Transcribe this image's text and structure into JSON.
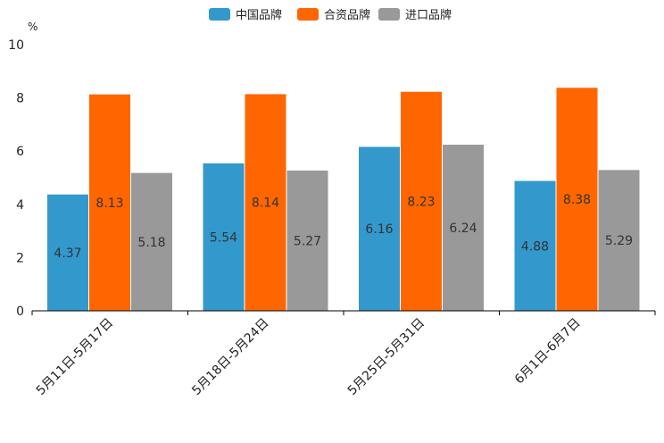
{
  "chart_data": {
    "type": "bar",
    "unit_label": "%",
    "ylim": [
      0,
      10
    ],
    "yticks": [
      0,
      2,
      4,
      6,
      8,
      10
    ],
    "categories": [
      "5月11日-5月17日",
      "5月18日-5月24日",
      "5月25日-5月31日",
      "6月1日-6月7日"
    ],
    "series": [
      {
        "name": "中国品牌",
        "color": "#3399cc",
        "values": [
          4.37,
          5.54,
          6.16,
          4.88
        ]
      },
      {
        "name": "合资品牌",
        "color": "#ff6600",
        "values": [
          8.13,
          8.14,
          8.23,
          8.38
        ]
      },
      {
        "name": "进口品牌",
        "color": "#999999",
        "values": [
          5.18,
          5.27,
          6.24,
          5.29
        ]
      }
    ],
    "legend_position": "top-center",
    "grid": false
  }
}
